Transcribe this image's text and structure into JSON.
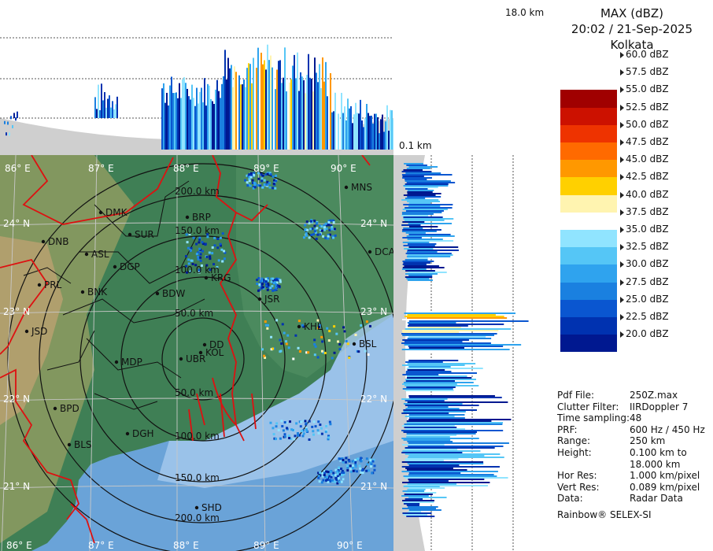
{
  "header": {
    "title": "MAX (dBZ)",
    "datetime": "20:02 / 21-Sep-2025",
    "station": "Kolkata"
  },
  "top_panel": {
    "height_label": "18.0 km"
  },
  "side_panel": {
    "height_label": "0.1 km"
  },
  "color_scale": [
    {
      "label": "60.0 dBZ",
      "color": "#ffffff"
    },
    {
      "label": "57.5 dBZ",
      "color": "#ffffff"
    },
    {
      "label": "55.0 dBZ",
      "color": "#a00000"
    },
    {
      "label": "52.5 dBZ",
      "color": "#cc1100"
    },
    {
      "label": "50.0 dBZ",
      "color": "#ee3300"
    },
    {
      "label": "47.5 dBZ",
      "color": "#ff6a00"
    },
    {
      "label": "45.0 dBZ",
      "color": "#ff9800"
    },
    {
      "label": "42.5 dBZ",
      "color": "#ffd000"
    },
    {
      "label": "40.0 dBZ",
      "color": "#fff4b0"
    },
    {
      "label": "37.5 dBZ",
      "color": "#ffffff"
    },
    {
      "label": "35.0 dBZ",
      "color": "#90e4ff"
    },
    {
      "label": "32.5 dBZ",
      "color": "#55c6f6"
    },
    {
      "label": "30.0 dBZ",
      "color": "#2fa3ee"
    },
    {
      "label": "27.5 dBZ",
      "color": "#1a80e0"
    },
    {
      "label": "25.0 dBZ",
      "color": "#0a56d0"
    },
    {
      "label": "22.5 dBZ",
      "color": "#0032b0"
    },
    {
      "label": "20.0 dBZ",
      "color": "#001890"
    }
  ],
  "metadata": [
    {
      "key": "Pdf File:",
      "value": "250Z.max"
    },
    {
      "key": "Clutter Filter:",
      "value": "IIRDoppler 7"
    },
    {
      "key": "Time sampling:",
      "value": "48"
    },
    {
      "key": "PRF:",
      "value": "600 Hz / 450 Hz"
    },
    {
      "key": "Range:",
      "value": "250 km"
    },
    {
      "key": "Height:",
      "value": "0.100 km to"
    },
    {
      "key": "",
      "value": "18.000 km"
    },
    {
      "key": "Hor Res:",
      "value": "1.000 km/pixel"
    },
    {
      "key": "Vert Res:",
      "value": "0.089 km/pixel"
    },
    {
      "key": "Data:",
      "value": "Radar Data"
    }
  ],
  "footer": "Rainbow® SELEX-SI",
  "map": {
    "lon_labels": [
      "86° E",
      "87° E",
      "88° E",
      "89° E",
      "90° E"
    ],
    "lat_labels": [
      "24° N",
      "23° N",
      "22° N",
      "21° N"
    ],
    "range_rings": [
      "50.0 km",
      "100.0 km",
      "150.0 km",
      "200.0 km"
    ],
    "stations": [
      "MNS",
      "DMK",
      "BRP",
      "SUR",
      "DNB",
      "ASL",
      "DGP",
      "DCA",
      "PRL",
      "BNK",
      "BDW",
      "KRG",
      "JSR",
      "KHL",
      "JSD",
      "DD",
      "KOL",
      "UBR",
      "BSL",
      "MDP",
      "BPD",
      "DGH",
      "BLS",
      "SHD"
    ],
    "colors": {
      "sea": "#6aa3d8",
      "land": "#3f7f55",
      "border": "#dd1111",
      "district": "#111111",
      "grid": "#c8c8c8"
    }
  }
}
